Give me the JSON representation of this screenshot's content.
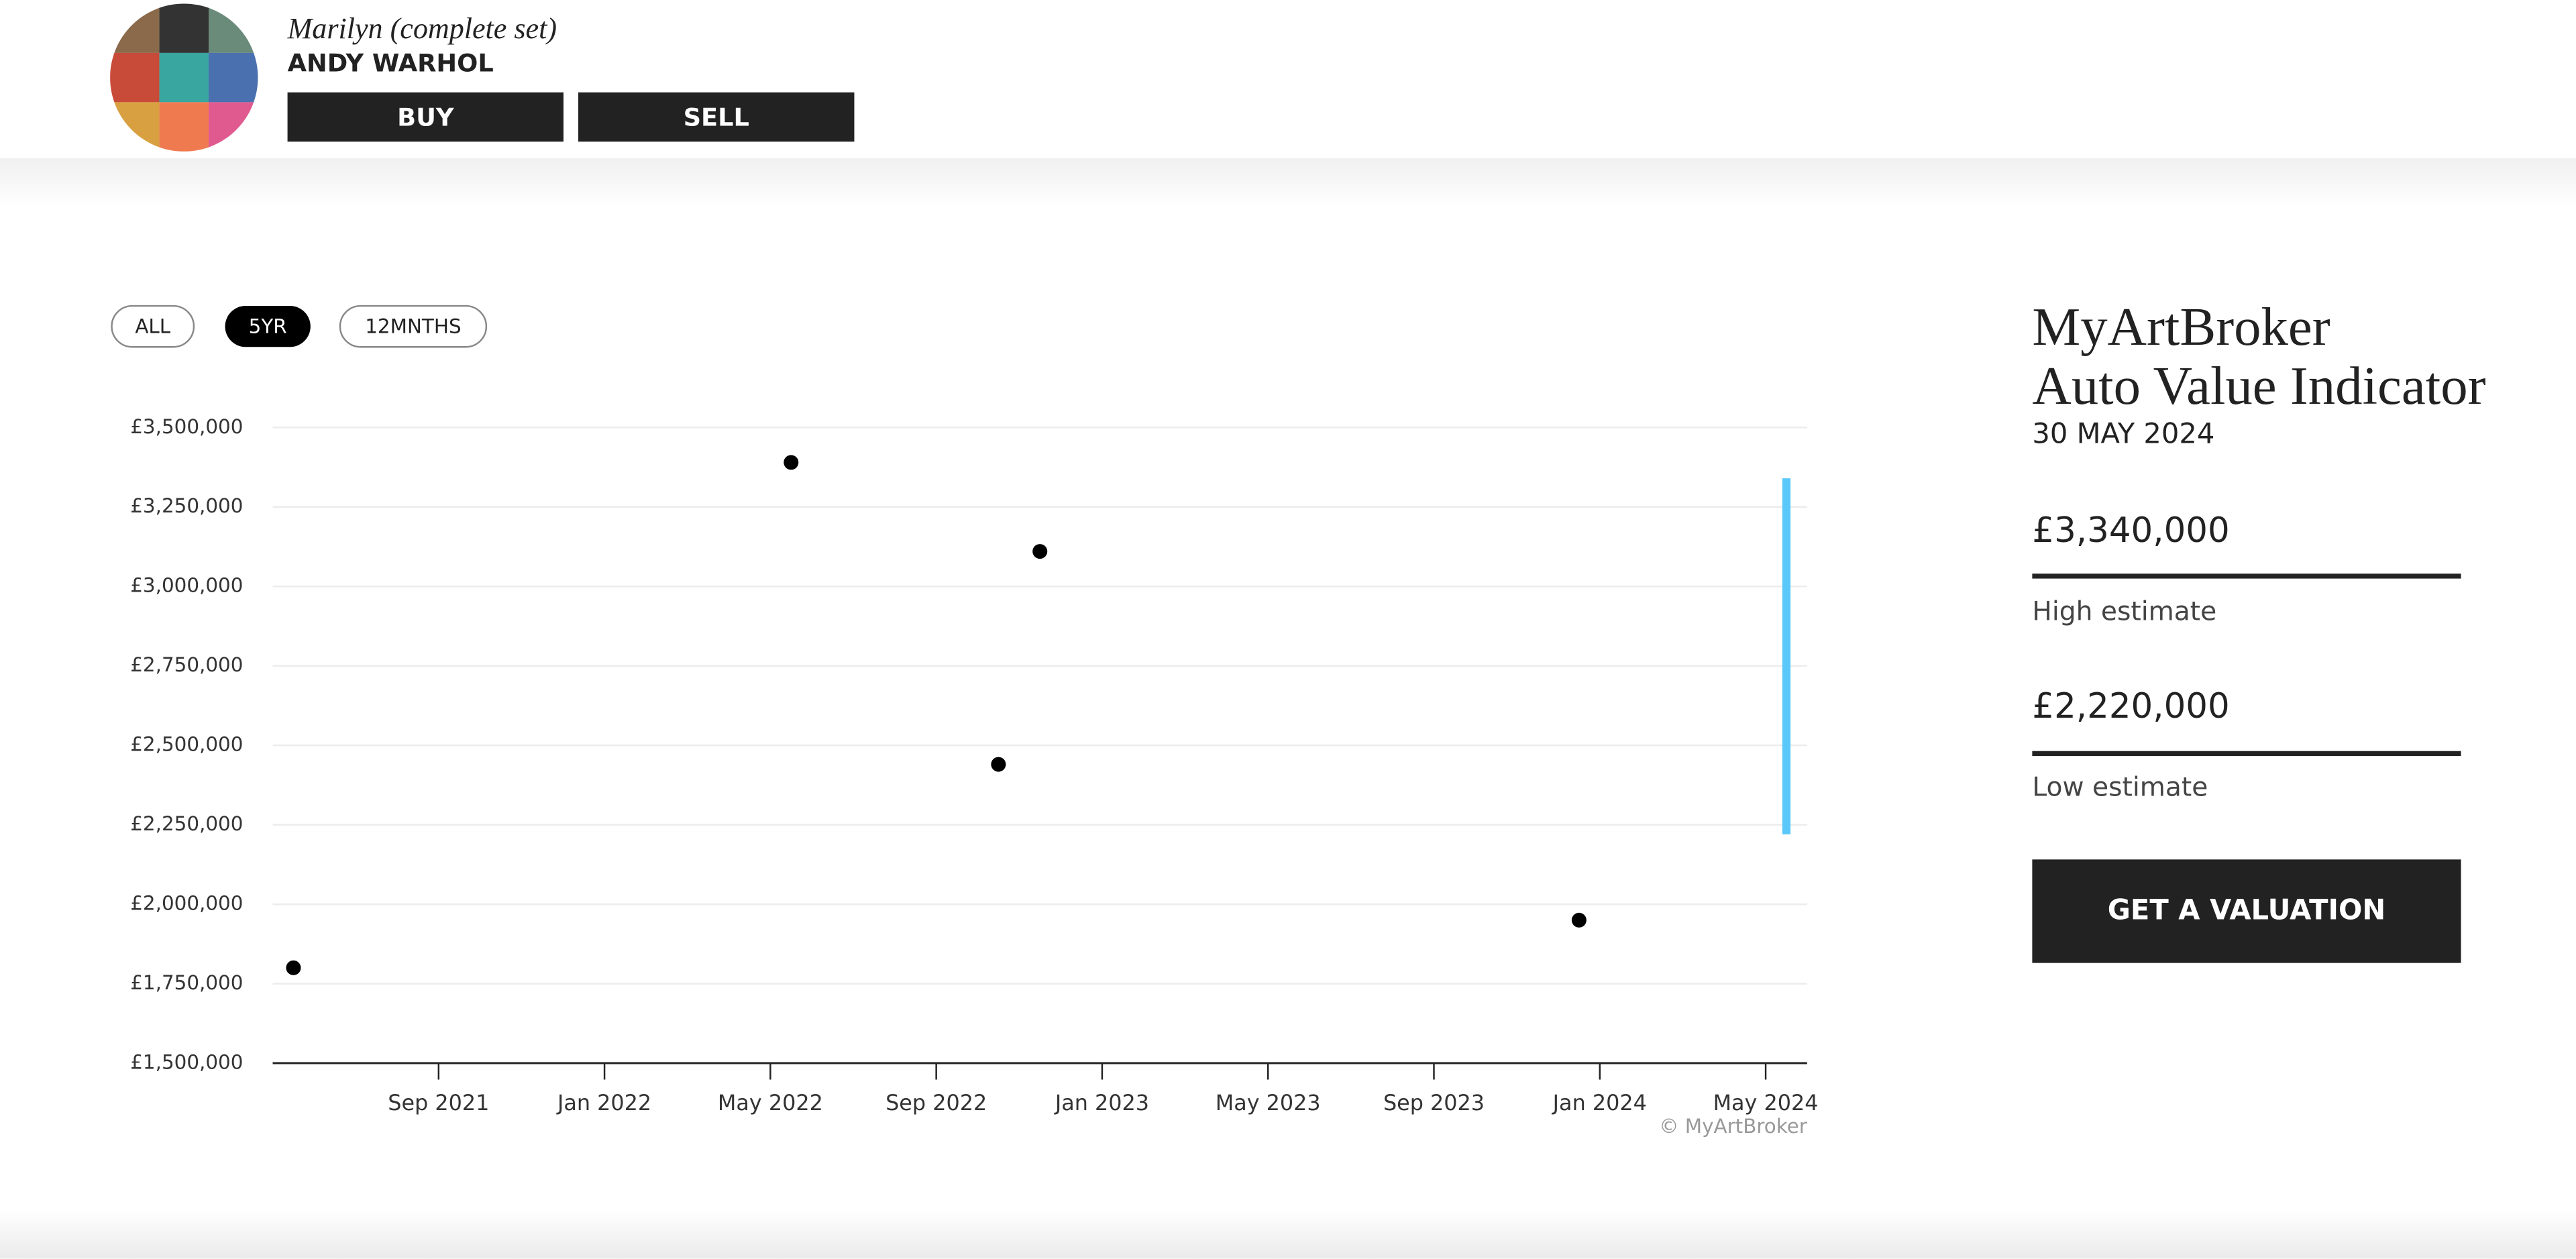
{
  "header": {
    "title": "Marilyn (complete set)",
    "artist": "ANDY WARHOL",
    "buttons": [
      "BUY",
      "SELL"
    ]
  },
  "range_buttons": [
    "ALL",
    "5YR",
    "12MNTHS"
  ],
  "chart_data": {
    "type": "scatter",
    "x": [
      "2021-05",
      "2022-05",
      "2022-10",
      "2022-11",
      "2023-12"
    ],
    "values": [
      1800000,
      3390000,
      2440000,
      3110000,
      1950000
    ],
    "color": "#000000",
    "xlim": [
      "2021-05",
      "2024-05"
    ],
    "xticks": [
      {
        "value": "2021-09",
        "label": "Sep 2021"
      },
      {
        "value": "2022-01",
        "label": "Jan 2022"
      },
      {
        "value": "2022-05",
        "label": "May 2022"
      },
      {
        "value": "2022-09",
        "label": "Sep 2022"
      },
      {
        "value": "2023-01",
        "label": "Jan 2023"
      },
      {
        "value": "2023-05",
        "label": "May 2023"
      },
      {
        "value": "2023-09",
        "label": "Sep 2023"
      },
      {
        "value": "2024-01",
        "label": "Jan 2024"
      },
      {
        "value": "2024-05",
        "label": "May 2024"
      }
    ],
    "ylim": [
      1500000,
      3500000
    ],
    "yticks": [
      {
        "value": 1500000,
        "label": "£1,500,000"
      },
      {
        "value": 1750000,
        "label": "£1,750,000"
      },
      {
        "value": 2000000,
        "label": "£2,000,000"
      },
      {
        "value": 2250000,
        "label": "£2,250,000"
      },
      {
        "value": 2500000,
        "label": "£2,500,000"
      },
      {
        "value": 2750000,
        "label": "£2,750,000"
      },
      {
        "value": 3000000,
        "label": "£3,000,000"
      },
      {
        "value": 3250000,
        "label": "£3,250,000"
      },
      {
        "value": 3500000,
        "label": "£3,500,000"
      }
    ],
    "grid": true,
    "watermark": "© MyArtBroker",
    "estimate": {
      "x": "2024-05",
      "values": [
        3340000,
        2220000
      ],
      "value_labels": [
        "£3,340,000",
        "£2,220,000"
      ],
      "color": "#5ac8fa"
    }
  },
  "panel": {
    "brand": "MyArtBroker",
    "subtitle": "Auto Value Indicator",
    "date": "30 MAY 2024",
    "high_label": "High estimate",
    "low_label": "Low estimate",
    "cta": "GET A VALUATION"
  }
}
